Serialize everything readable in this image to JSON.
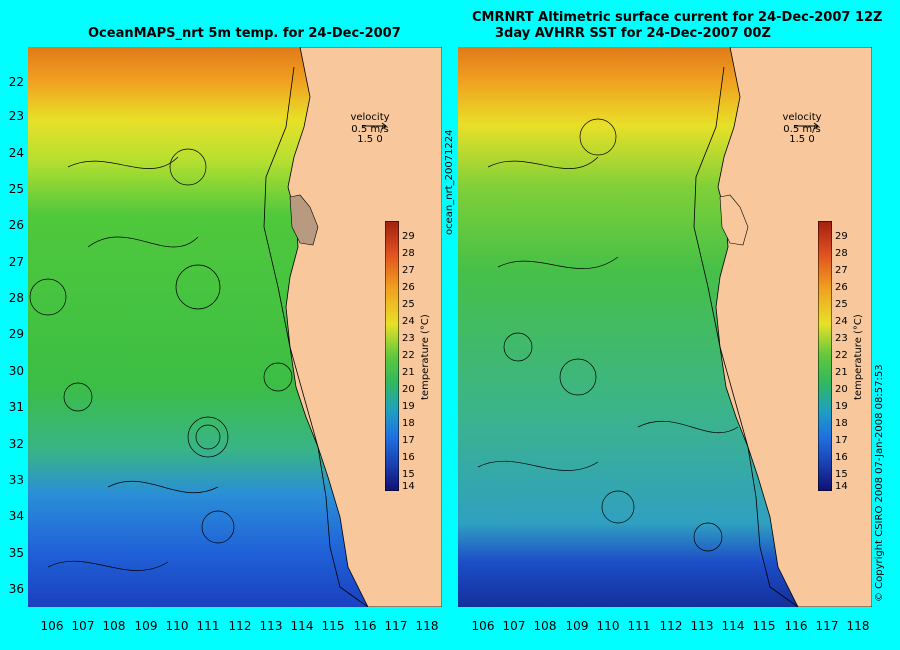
{
  "left_panel": {
    "title": "OceanMAPS_nrt 5m temp. for 24-Dec-2007",
    "velocity_label": "velocity",
    "velocity_value": "0.5 m/s",
    "velocity_scale": "1.5 0"
  },
  "right_panel": {
    "title_line1": "CMRNRT Altimetric surface current for 24-Dec-2007 12Z",
    "title_line2": "3day AVHRR SST for 24-Dec-2007 00Z",
    "velocity_label": "velocity",
    "velocity_value": "0.5 m/s",
    "velocity_scale": "1.5 0"
  },
  "product_id": "ocean_nrt_20071224",
  "copyright": "© Copyright CSIRO 2008   07-Jan-2008 08:57:53",
  "latitude_ticks": [
    "22",
    "23",
    "24",
    "25",
    "26",
    "27",
    "28",
    "29",
    "30",
    "31",
    "32",
    "33",
    "34",
    "35",
    "36"
  ],
  "longitude_ticks": [
    "106",
    "107",
    "108",
    "109",
    "110",
    "111",
    "112",
    "113",
    "114",
    "115",
    "116",
    "117",
    "118"
  ],
  "colorbar": {
    "label": "temperature (°C)",
    "ticks": [
      "29",
      "28",
      "27",
      "26",
      "25",
      "24",
      "23",
      "22",
      "21",
      "20",
      "19",
      "18",
      "17",
      "16",
      "15",
      "14"
    ],
    "min": 14,
    "max": 29.5
  },
  "colors": {
    "background": "#00ffff",
    "land": "#f8c89c",
    "warm": "#e07a1a",
    "mid": "#3cc23c",
    "cool": "#1a5ad0"
  }
}
